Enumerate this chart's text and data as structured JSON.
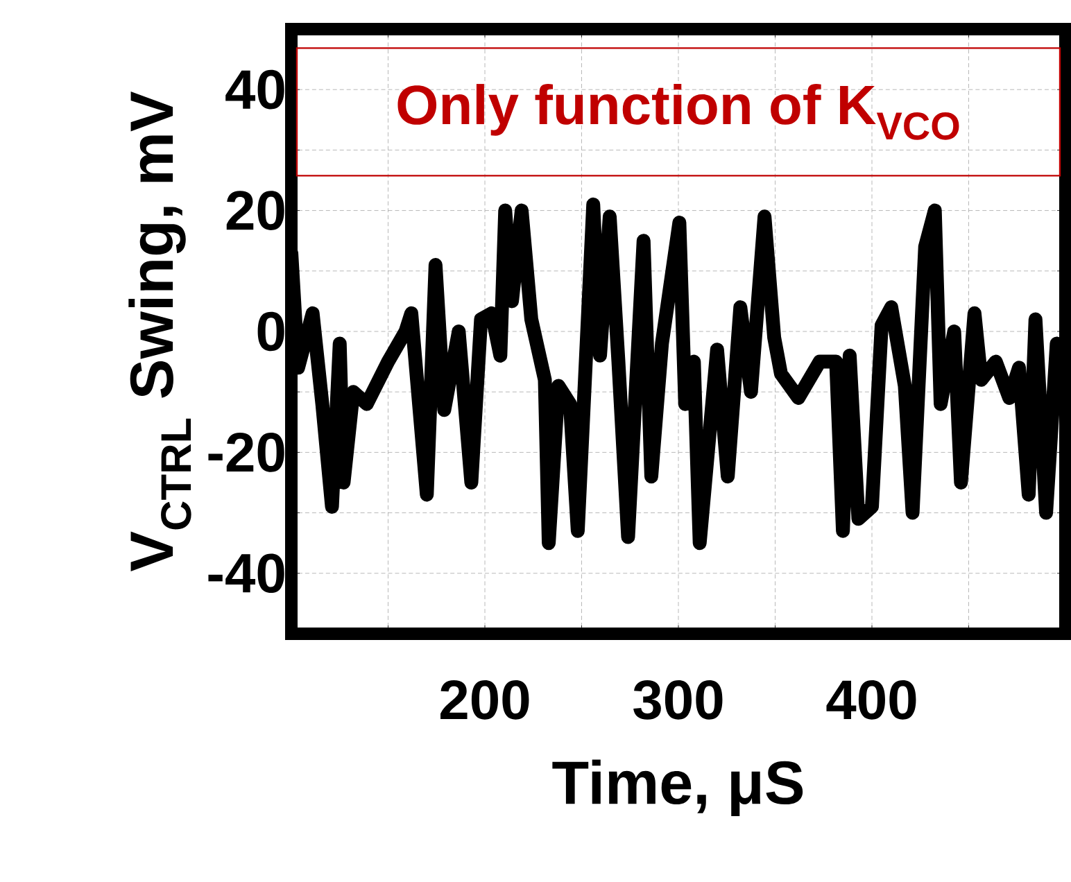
{
  "chart_data": {
    "type": "line",
    "xlabel": "Time, μS",
    "ylabel": "V$_{CTRL}$ Swing, mV",
    "annotations": [
      "Only function of K$_{VCO}$"
    ],
    "xlim": [
      100,
      500
    ],
    "ylim": [
      -50,
      50
    ],
    "xticks": [
      {
        "value": 150,
        "label": null
      },
      200,
      {
        "value": 250,
        "label": null
      },
      300,
      {
        "value": 350,
        "label": null
      },
      400,
      {
        "value": 450,
        "label": null
      }
    ],
    "yticks": [
      {
        "value": -50,
        "label": null
      },
      -40,
      {
        "value": -30,
        "label": null
      },
      -20,
      {
        "value": -10,
        "label": null
      },
      0,
      {
        "value": 10,
        "label": null
      },
      20,
      {
        "value": 30,
        "label": null
      },
      40,
      {
        "value": 50,
        "label": null
      }
    ],
    "grid": true,
    "marker": "none",
    "line_style": "solid",
    "series": [
      {
        "color": "#000000",
        "x": [
          100,
          103.5,
          111,
          116,
          121,
          125,
          127,
          132,
          139,
          150,
          159,
          162,
          170,
          174.5,
          179,
          186.5,
          193,
          198,
          203.5,
          208,
          210.5,
          214,
          219,
          224,
          231,
          233,
          238,
          244,
          248,
          256,
          259.5,
          264.5,
          269,
          274,
          282,
          286,
          291.5,
          300.5,
          303.5,
          308,
          311,
          320,
          325.5,
          332,
          337.5,
          344.5,
          349.5,
          353,
          362,
          373,
          381.5,
          385,
          388.5,
          393,
          400,
          405,
          410,
          417,
          421,
          427.5,
          432.5,
          435.5,
          442.5,
          446,
          453,
          456.5,
          464,
          471,
          476,
          481,
          484.5,
          490,
          495.5
        ],
        "values": [
          13,
          -6,
          3,
          -12,
          -29,
          -2,
          -25,
          -10,
          -12,
          -5,
          0,
          3,
          -27,
          11,
          -13,
          0,
          -25,
          2,
          3,
          -4,
          20,
          5,
          20,
          2,
          -8,
          -35,
          -9,
          -12,
          -33,
          21,
          -4,
          19,
          -5,
          -34,
          15,
          -24,
          -2,
          18,
          -12,
          -5,
          -35,
          -3,
          -24,
          4,
          -10,
          19,
          -1,
          -7,
          -11,
          -5,
          -5,
          -33,
          -4,
          -31,
          -29,
          1,
          4,
          -9,
          -30,
          14,
          20,
          -12,
          0,
          -25,
          3,
          -8,
          -5,
          -11,
          -6,
          -27,
          2,
          -30,
          -2
        ]
      }
    ]
  }
}
